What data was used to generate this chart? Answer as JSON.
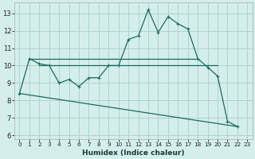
{
  "xlabel": "Humidex (Indice chaleur)",
  "bg_color": "#d4eeeb",
  "grid_color": "#aed4cf",
  "line_color": "#1a6b5e",
  "xlim": [
    -0.5,
    23.5
  ],
  "ylim": [
    5.8,
    13.6
  ],
  "xticks": [
    0,
    1,
    2,
    3,
    4,
    5,
    6,
    7,
    8,
    9,
    10,
    11,
    12,
    13,
    14,
    15,
    16,
    17,
    18,
    19,
    20,
    21,
    22,
    23
  ],
  "yticks": [
    6,
    7,
    8,
    9,
    10,
    11,
    12,
    13
  ],
  "main_x": [
    0,
    1,
    2,
    3,
    4,
    5,
    6,
    7,
    8,
    9,
    10,
    11,
    12,
    13,
    14,
    15,
    16,
    17,
    18,
    19,
    20,
    21,
    22
  ],
  "main_y": [
    8.4,
    10.4,
    10.1,
    10.0,
    9.0,
    9.2,
    8.8,
    9.3,
    9.3,
    10.0,
    10.0,
    11.5,
    11.7,
    13.2,
    11.9,
    12.8,
    12.4,
    12.1,
    10.4,
    9.9,
    9.4,
    6.8,
    6.5
  ],
  "line2_x": [
    1,
    18
  ],
  "line2_y": [
    10.4,
    10.4
  ],
  "line3_x": [
    2,
    20
  ],
  "line3_y": [
    10.0,
    10.0
  ],
  "line4_x": [
    0,
    22
  ],
  "line4_y": [
    8.4,
    6.5
  ]
}
